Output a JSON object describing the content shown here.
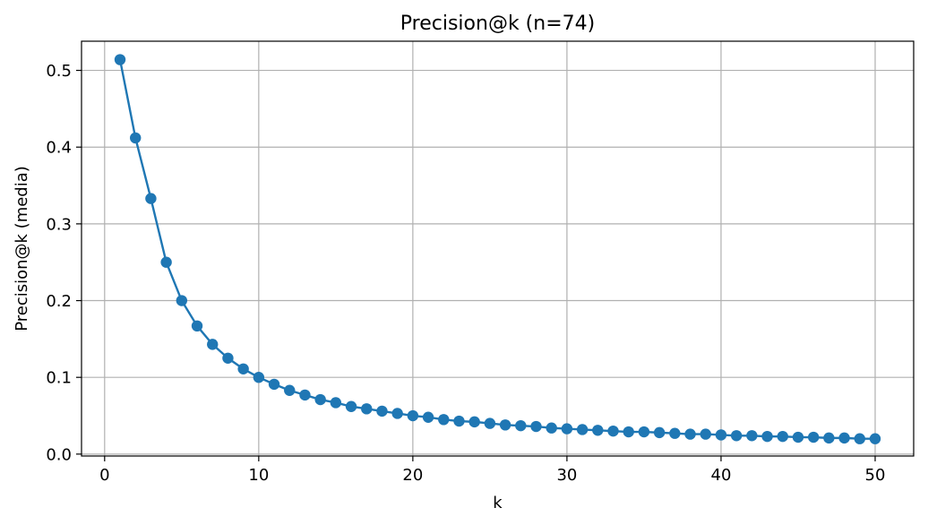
{
  "chart_data": {
    "type": "line",
    "title": "Precision@k (n=74)",
    "xlabel": "k",
    "ylabel": "Precision@k (media)",
    "xlim": [
      -1.5,
      52.5
    ],
    "ylim": [
      -0.0025,
      0.538
    ],
    "xticks": [
      0,
      10,
      20,
      30,
      40,
      50
    ],
    "yticks": [
      0.0,
      0.1,
      0.2,
      0.3,
      0.4,
      0.5
    ],
    "xtick_labels": [
      "0",
      "10",
      "20",
      "30",
      "40",
      "50"
    ],
    "ytick_labels": [
      "0.0",
      "0.1",
      "0.2",
      "0.3",
      "0.4",
      "0.5"
    ],
    "grid": true,
    "color": "#1f77b4",
    "marker": "circle",
    "series": [
      {
        "x": [
          1,
          2,
          3,
          4,
          5,
          6,
          7,
          8,
          9,
          10,
          11,
          12,
          13,
          14,
          15,
          16,
          17,
          18,
          19,
          20,
          21,
          22,
          23,
          24,
          25,
          26,
          27,
          28,
          29,
          30,
          31,
          32,
          33,
          34,
          35,
          36,
          37,
          38,
          39,
          40,
          41,
          42,
          43,
          44,
          45,
          46,
          47,
          48,
          49,
          50
        ],
        "values": [
          0.514,
          0.412,
          0.333,
          0.25,
          0.2,
          0.167,
          0.143,
          0.125,
          0.111,
          0.1,
          0.091,
          0.083,
          0.077,
          0.071,
          0.067,
          0.062,
          0.059,
          0.056,
          0.053,
          0.05,
          0.048,
          0.045,
          0.043,
          0.042,
          0.04,
          0.038,
          0.037,
          0.036,
          0.034,
          0.033,
          0.032,
          0.031,
          0.03,
          0.029,
          0.029,
          0.028,
          0.027,
          0.026,
          0.026,
          0.025,
          0.024,
          0.024,
          0.023,
          0.023,
          0.022,
          0.022,
          0.021,
          0.021,
          0.02,
          0.02
        ]
      }
    ]
  }
}
